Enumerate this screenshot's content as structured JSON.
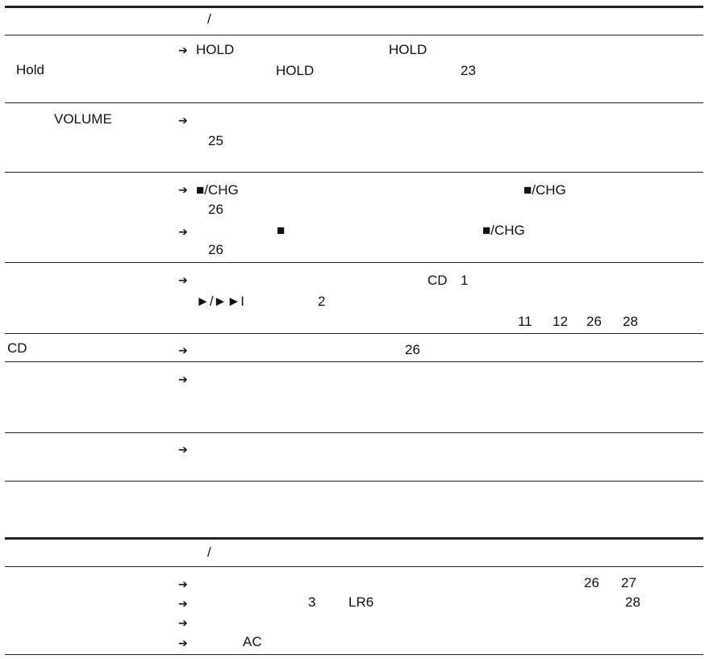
{
  "table1": {
    "header_slash": "/",
    "rows": [
      {
        "label": "Hold",
        "lines": [
          {
            "arrow": "➔",
            "a": "HOLD",
            "b": "HOLD"
          },
          {
            "a": "HOLD",
            "b": "23"
          }
        ]
      },
      {
        "label": "VOLUME",
        "lines": [
          {
            "arrow": "➔"
          },
          {
            "a": "25"
          }
        ]
      },
      {
        "label": "",
        "lines": [
          {
            "arrow": "➔",
            "a": "■/CHG",
            "b": "■/CHG"
          },
          {
            "a": "26"
          },
          {
            "arrow": "➔",
            "a": "■",
            "b": "■/CHG"
          },
          {
            "a": "26"
          }
        ]
      },
      {
        "label": "",
        "lines": [
          {
            "arrow": "➔",
            "a": "CD",
            "b": "1"
          },
          {
            "a": "►/►►I",
            "b": "2"
          },
          {
            "refs": [
              "11",
              "12",
              "26",
              "28"
            ]
          }
        ]
      },
      {
        "label": "CD",
        "lines": [
          {
            "arrow": "➔",
            "a": "26"
          }
        ]
      },
      {
        "label": "",
        "lines": [
          {
            "arrow": "➔"
          }
        ]
      },
      {
        "label": "",
        "lines": [
          {
            "arrow": "➔"
          }
        ]
      }
    ]
  },
  "table2": {
    "header_slash": "/",
    "rows": [
      {
        "arrow": "➔",
        "a": "26",
        "b": "27"
      },
      {
        "arrow": "➔",
        "a": "3",
        "b": "LR6",
        "c": "28"
      },
      {
        "arrow": "➔"
      },
      {
        "arrow": "➔",
        "a": "AC"
      }
    ]
  }
}
